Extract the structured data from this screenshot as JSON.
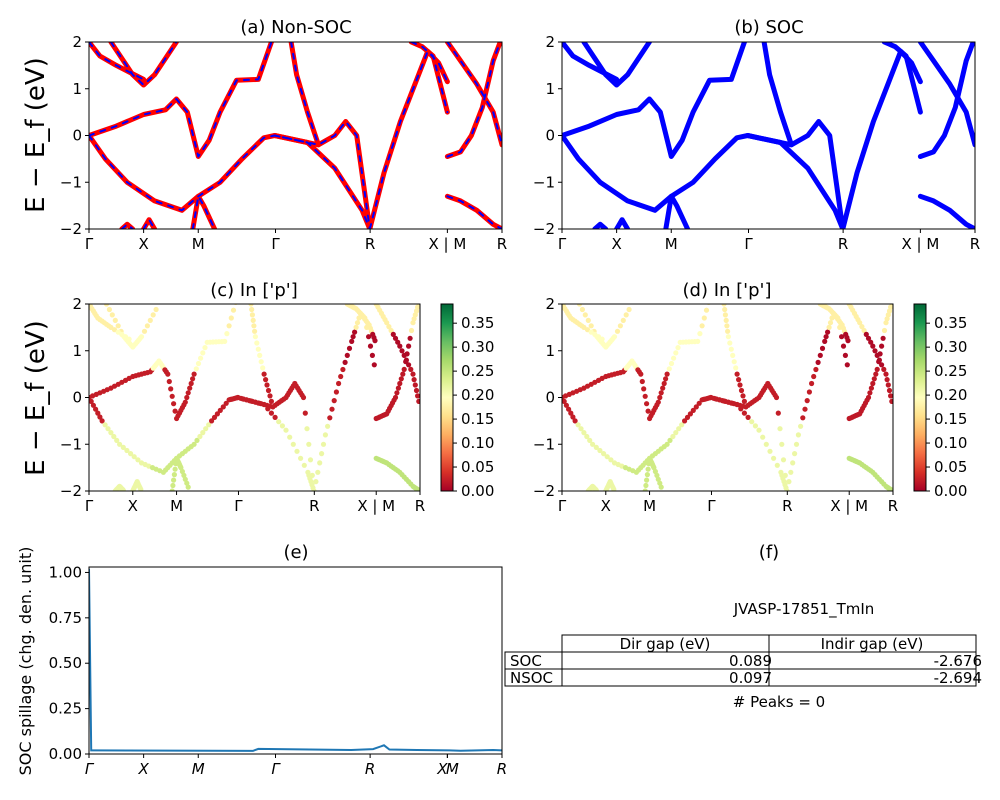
{
  "colors": {
    "nonsoc_primary": "#ff0000",
    "nonsoc_dash": "#0000ff",
    "soc": "#0000ff",
    "spillage_line": "#1f77b4",
    "cmap": "RdYlGn"
  },
  "band_ylabel": "E − E_f (eV)",
  "spillage_ylabel": "SOC spillage (chg. den. unit)",
  "chart_data": [
    {
      "id": "a",
      "type": "line",
      "title": "(a) Non-SOC",
      "ylim": [
        -2,
        2
      ],
      "yticks": [
        "2",
        "1",
        "0",
        "−1",
        "−2"
      ],
      "kpath": [
        "Γ",
        "X",
        "M",
        "Γ",
        "R",
        "X | M",
        "R"
      ],
      "kpath_positions": [
        0.0,
        0.5,
        1.0,
        1.7071,
        2.5731,
        3.2802,
        3.7802
      ],
      "style": "red solid with blue dashes"
    },
    {
      "id": "b",
      "type": "line",
      "title": "(b) SOC",
      "ylim": [
        -2,
        2
      ],
      "yticks": [
        "2",
        "1",
        "0",
        "−1",
        "−2"
      ],
      "kpath": [
        "Γ",
        "X",
        "M",
        "Γ",
        "R",
        "X | M",
        "R"
      ],
      "style": "blue, thicker"
    },
    {
      "id": "c",
      "type": "scatter",
      "title": "(c)  In ['p']",
      "ylim": [
        -2,
        2
      ],
      "yticks": [
        "2",
        "1",
        "0",
        "−1",
        "−2"
      ],
      "kpath": [
        "Γ",
        "X",
        "M",
        "Γ",
        "R",
        "X | M",
        "R"
      ],
      "colorbar": {
        "range": [
          0,
          0.39
        ],
        "ticks": [
          "0.00",
          "0.05",
          "0.10",
          "0.15",
          "0.20",
          "0.25",
          "0.30",
          "0.35"
        ]
      }
    },
    {
      "id": "d",
      "type": "scatter",
      "title": "(d) In ['p']",
      "ylim": [
        -2,
        2
      ],
      "yticks": [
        "2",
        "1",
        "0",
        "−1",
        "−2"
      ],
      "kpath": [
        "Γ",
        "X",
        "M",
        "Γ",
        "R",
        "X | M",
        "R"
      ],
      "colorbar": {
        "range": [
          0,
          0.39
        ],
        "ticks": [
          "0.00",
          "0.05",
          "0.10",
          "0.15",
          "0.20",
          "0.25",
          "0.30",
          "0.35"
        ]
      }
    },
    {
      "id": "e",
      "type": "line",
      "title": "(e)",
      "ylabel": "SOC spillage (chg. den. unit)",
      "ylim": [
        0,
        1.03
      ],
      "yticks": [
        "0.00",
        "0.25",
        "0.50",
        "0.75",
        "1.00"
      ],
      "kpath_italic": [
        "Γ",
        "X",
        "M",
        "Γ",
        "R",
        "X",
        "M",
        "R"
      ],
      "x": [
        0.0,
        0.02,
        0.05,
        1.5,
        1.55,
        2.4,
        2.6,
        2.7,
        2.75,
        3.0,
        3.3,
        3.4,
        3.7,
        3.78
      ],
      "y": [
        1.02,
        0.02,
        0.02,
        0.017,
        0.028,
        0.022,
        0.027,
        0.048,
        0.025,
        0.022,
        0.02,
        0.018,
        0.022,
        0.02
      ]
    }
  ],
  "panel_f": {
    "title": "(f)",
    "material": "JVASP-17851_TmIn",
    "table": {
      "headers": [
        "",
        "Dir gap (eV)",
        "Indir gap (eV)"
      ],
      "rows": [
        {
          "label": "SOC",
          "dir": "0.089",
          "indir": "-2.676"
        },
        {
          "label": "NSOC",
          "dir": "0.097",
          "indir": "-2.694"
        }
      ]
    },
    "peaks": "# Peaks = 0"
  }
}
